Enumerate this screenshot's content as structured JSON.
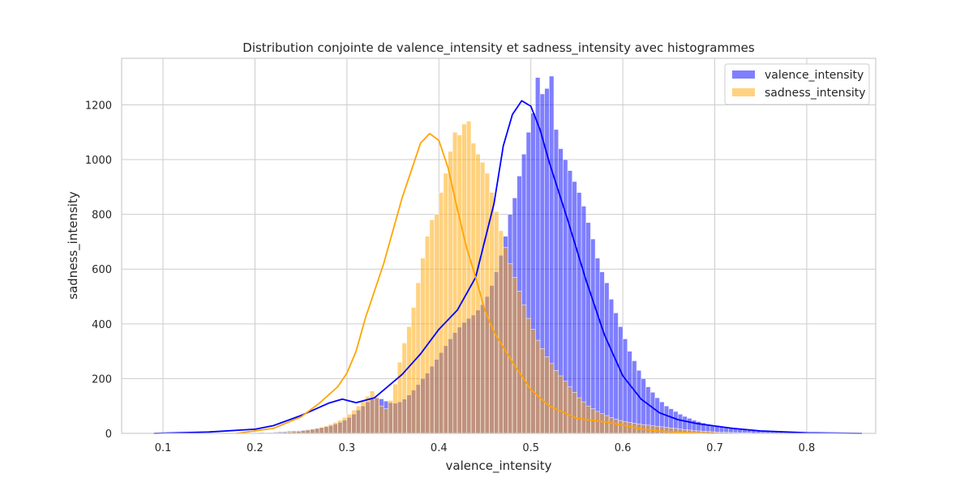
{
  "chart_data": {
    "type": "histogram",
    "title": "Distribution conjointe de valence_intensity et sadness_intensity avec histogrammes",
    "xlabel": "valence_intensity",
    "ylabel": "sadness_intensity",
    "xlim": [
      0.055,
      0.875
    ],
    "ylim": [
      0,
      1370
    ],
    "xticks": [
      0.1,
      0.2,
      0.3,
      0.4,
      0.5,
      0.6,
      0.7,
      0.8
    ],
    "xtick_labels": [
      "0.1",
      "0.2",
      "0.3",
      "0.4",
      "0.5",
      "0.6",
      "0.7",
      "0.8"
    ],
    "yticks": [
      0,
      200,
      400,
      600,
      800,
      1000,
      1200
    ],
    "ytick_labels": [
      "0",
      "200",
      "400",
      "600",
      "800",
      "1000",
      "1200"
    ],
    "grid": true,
    "legend_position": "top-right",
    "series": [
      {
        "name": "valence_intensity",
        "color": "#0000ff",
        "hist_x_range": [
          0.085,
          0.865
        ],
        "hist_counts": [
          0,
          0,
          0,
          0,
          0,
          0,
          0,
          0,
          0,
          0,
          0,
          0,
          0,
          0,
          0,
          0,
          0,
          0,
          0,
          0,
          1,
          1,
          2,
          2,
          3,
          3,
          4,
          5,
          6,
          7,
          8,
          9,
          10,
          12,
          14,
          16,
          18,
          21,
          24,
          28,
          34,
          40,
          48,
          58,
          70,
          85,
          100,
          115,
          125,
          130,
          126,
          118,
          112,
          110,
          115,
          125,
          140,
          158,
          178,
          200,
          220,
          245,
          270,
          295,
          320,
          345,
          368,
          388,
          405,
          420,
          432,
          450,
          470,
          500,
          540,
          590,
          650,
          720,
          800,
          860,
          940,
          1020,
          1100,
          1170,
          1300,
          1240,
          1260,
          1305,
          1110,
          1040,
          1000,
          960,
          920,
          880,
          830,
          770,
          710,
          640,
          590,
          550,
          490,
          440,
          390,
          345,
          300,
          265,
          230,
          200,
          170,
          150,
          130,
          115,
          100,
          90,
          80,
          70,
          62,
          55,
          48,
          43,
          38,
          34,
          30,
          28,
          25,
          23,
          20,
          18,
          16,
          14,
          12,
          11,
          10,
          9,
          8,
          7,
          6,
          5,
          5,
          4,
          4,
          3,
          3,
          3,
          2,
          2,
          2,
          2,
          1,
          1,
          1,
          1,
          1,
          1,
          1,
          1
        ],
        "kde_x": [
          0.09,
          0.15,
          0.2,
          0.22,
          0.25,
          0.28,
          0.295,
          0.31,
          0.33,
          0.36,
          0.38,
          0.4,
          0.42,
          0.44,
          0.46,
          0.47,
          0.48,
          0.49,
          0.5,
          0.51,
          0.52,
          0.54,
          0.56,
          0.58,
          0.6,
          0.62,
          0.64,
          0.66,
          0.68,
          0.7,
          0.72,
          0.75,
          0.8,
          0.86
        ],
        "kde_y": [
          0,
          5,
          15,
          28,
          65,
          110,
          125,
          112,
          130,
          215,
          290,
          380,
          450,
          570,
          840,
          1050,
          1165,
          1215,
          1195,
          1110,
          990,
          780,
          560,
          360,
          210,
          125,
          75,
          50,
          36,
          27,
          18,
          9,
          2,
          0
        ]
      },
      {
        "name": "sadness_intensity",
        "color": "#ffa500",
        "hist_x_range": [
          0.085,
          0.865
        ],
        "hist_counts": [
          0,
          0,
          0,
          0,
          0,
          0,
          0,
          0,
          0,
          0,
          0,
          0,
          0,
          0,
          0,
          0,
          0,
          0,
          0,
          0,
          0,
          0,
          1,
          1,
          1,
          2,
          2,
          3,
          3,
          4,
          5,
          6,
          8,
          10,
          12,
          15,
          18,
          22,
          27,
          33,
          40,
          48,
          58,
          70,
          85,
          100,
          118,
          135,
          155,
          130,
          100,
          90,
          120,
          180,
          260,
          330,
          390,
          460,
          550,
          640,
          720,
          780,
          800,
          880,
          950,
          1030,
          1100,
          1090,
          1130,
          1140,
          1060,
          1020,
          990,
          950,
          880,
          810,
          740,
          680,
          620,
          570,
          520,
          470,
          420,
          380,
          340,
          310,
          280,
          255,
          230,
          210,
          190,
          170,
          150,
          130,
          115,
          100,
          90,
          80,
          72,
          65,
          58,
          52,
          47,
          43,
          40,
          37,
          34,
          32,
          30,
          28,
          26,
          24,
          22,
          20,
          18,
          16,
          14,
          12,
          10,
          9,
          8,
          7,
          6,
          5,
          4,
          4,
          3,
          3,
          2,
          2,
          2,
          1,
          1,
          1,
          1,
          1,
          0,
          0,
          0,
          0,
          0,
          0,
          0,
          0,
          0,
          0,
          0,
          0,
          0,
          0,
          0,
          0,
          0,
          0,
          0,
          0
        ],
        "kde_x": [
          0.18,
          0.22,
          0.25,
          0.27,
          0.29,
          0.3,
          0.31,
          0.32,
          0.34,
          0.36,
          0.38,
          0.39,
          0.4,
          0.41,
          0.42,
          0.43,
          0.44,
          0.45,
          0.46,
          0.48,
          0.5,
          0.52,
          0.55,
          0.58,
          0.6,
          0.62,
          0.64,
          0.66,
          0.7
        ],
        "kde_y": [
          0,
          18,
          60,
          110,
          170,
          220,
          300,
          420,
          620,
          860,
          1060,
          1095,
          1070,
          970,
          820,
          680,
          570,
          450,
          370,
          260,
          160,
          100,
          55,
          42,
          30,
          16,
          8,
          4,
          0
        ]
      }
    ]
  }
}
